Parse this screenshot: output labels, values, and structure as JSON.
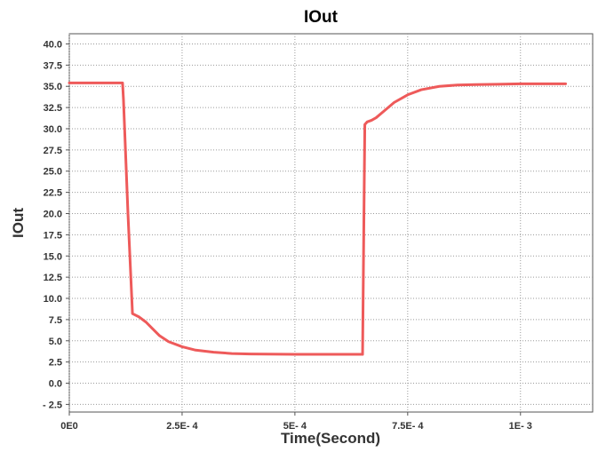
{
  "chart_data": {
    "type": "line",
    "title": "IOut",
    "xlabel": "Time(Second)",
    "ylabel": "IOut",
    "xlim": [
      0,
      0.00116
    ],
    "ylim": [
      -3.4,
      41.2
    ],
    "grid": true,
    "x_ticks": [
      {
        "value": 0,
        "label": "0E0"
      },
      {
        "value": 0.00025,
        "label": "2.5E- 4"
      },
      {
        "value": 0.0005,
        "label": "5E- 4"
      },
      {
        "value": 0.00075,
        "label": "7.5E- 4"
      },
      {
        "value": 0.001,
        "label": "1E- 3"
      }
    ],
    "y_ticks": [
      {
        "value": 40,
        "label": "40.0"
      },
      {
        "value": 37.5,
        "label": "37.5"
      },
      {
        "value": 35,
        "label": "35.0"
      },
      {
        "value": 32.5,
        "label": "32.5"
      },
      {
        "value": 30,
        "label": "30.0"
      },
      {
        "value": 27.5,
        "label": "27.5"
      },
      {
        "value": 25,
        "label": "25.0"
      },
      {
        "value": 22.5,
        "label": "22.5"
      },
      {
        "value": 20,
        "label": "20.0"
      },
      {
        "value": 17.5,
        "label": "17.5"
      },
      {
        "value": 15,
        "label": "15.0"
      },
      {
        "value": 12.5,
        "label": "12.5"
      },
      {
        "value": 10,
        "label": "10.0"
      },
      {
        "value": 7.5,
        "label": "7.5"
      },
      {
        "value": 5,
        "label": "5.0"
      },
      {
        "value": 2.5,
        "label": "2.5"
      },
      {
        "value": 0,
        "label": "0.0"
      },
      {
        "value": -2.5,
        "label": "- 2.5"
      }
    ],
    "series": [
      {
        "color": "#ee5a5a",
        "x": [
          0,
          0.0001,
          0.000118,
          0.00012,
          0.00013,
          0.00014,
          0.000155,
          0.00017,
          0.000185,
          0.0002,
          0.00022,
          0.00025,
          0.00028,
          0.00032,
          0.00036,
          0.0004,
          0.0005,
          0.0006,
          0.000625,
          0.00065,
          0.000655,
          0.00066,
          0.00067,
          0.00068,
          0.0007,
          0.00072,
          0.00075,
          0.00078,
          0.00082,
          0.00086,
          0.0009,
          0.00095,
          0.001,
          0.00105,
          0.0011
        ],
        "y": [
          35.4,
          35.4,
          35.4,
          33.5,
          20.0,
          8.2,
          7.8,
          7.2,
          6.4,
          5.6,
          4.9,
          4.3,
          3.9,
          3.65,
          3.5,
          3.45,
          3.4,
          3.4,
          3.4,
          3.4,
          30.5,
          30.8,
          31.0,
          31.3,
          32.2,
          33.1,
          34.0,
          34.6,
          35.0,
          35.15,
          35.2,
          35.25,
          35.3,
          35.3,
          35.3
        ]
      }
    ]
  }
}
